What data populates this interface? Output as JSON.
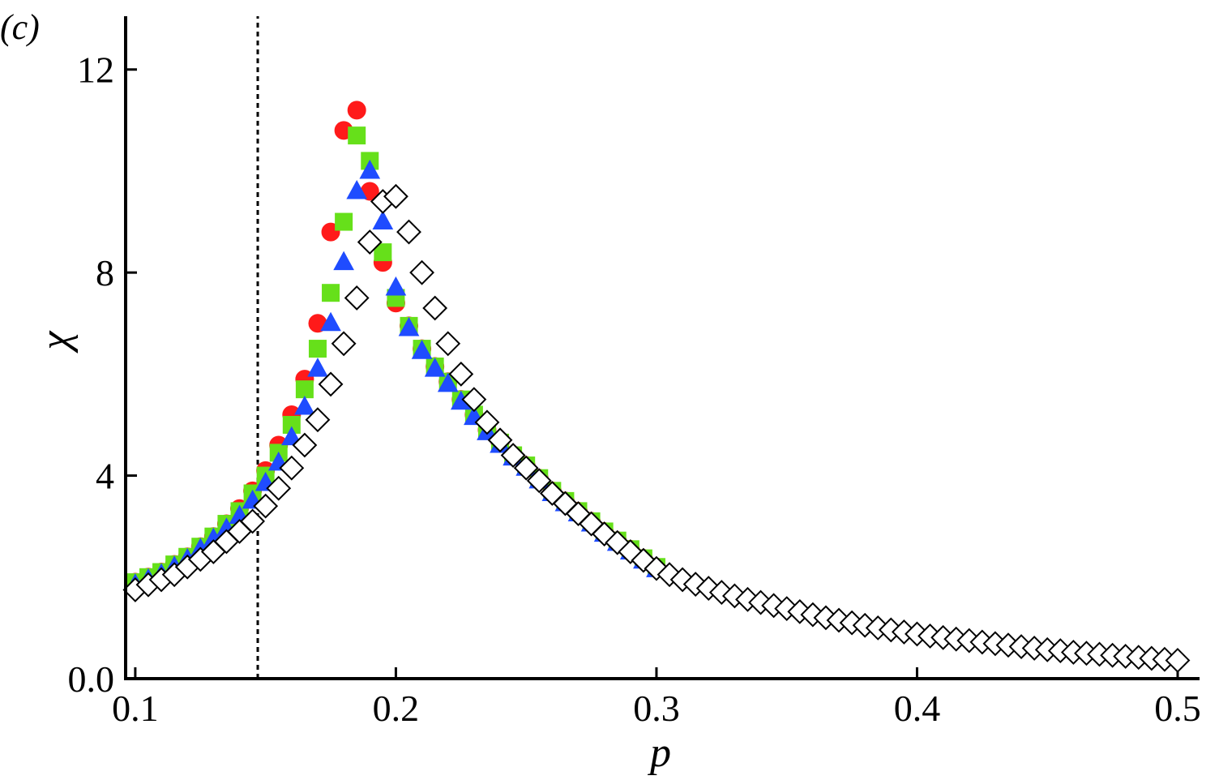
{
  "chart_data": {
    "type": "scatter",
    "panel_label": "(c)",
    "x_label": "p",
    "y_label": "χ",
    "xlim": [
      0.0963,
      0.5084
    ],
    "ylim": [
      0,
      13.05
    ],
    "xticks": [
      0.1,
      0.2,
      0.3,
      0.4,
      0.5
    ],
    "yticks": [
      {
        "value": 0,
        "label": "0.0"
      },
      4,
      8,
      12
    ],
    "vline": 0.147,
    "x": [
      0.1,
      0.105,
      0.11,
      0.115,
      0.12,
      0.125,
      0.13,
      0.135,
      0.14,
      0.145,
      0.15,
      0.155,
      0.16,
      0.165,
      0.17,
      0.175,
      0.18,
      0.185,
      0.19,
      0.195,
      0.2,
      0.205,
      0.21,
      0.215,
      0.22,
      0.225,
      0.23,
      0.235,
      0.24,
      0.245,
      0.25,
      0.255,
      0.26,
      0.265,
      0.27,
      0.275,
      0.28,
      0.285,
      0.29,
      0.295,
      0.3,
      0.305,
      0.31,
      0.315,
      0.32,
      0.325,
      0.33,
      0.335,
      0.34,
      0.345,
      0.35,
      0.355,
      0.36,
      0.365,
      0.37,
      0.375,
      0.38,
      0.385,
      0.39,
      0.395,
      0.4,
      0.405,
      0.41,
      0.415,
      0.42,
      0.425,
      0.43,
      0.435,
      0.44,
      0.445,
      0.45,
      0.455,
      0.46,
      0.465,
      0.47,
      0.475,
      0.48,
      0.485,
      0.49,
      0.495,
      0.5
    ],
    "series": [
      {
        "marker": "circle",
        "color": "#ff1a1a",
        "stroke": "#ff1a1a",
        "values": [
          1.9,
          2.0,
          2.1,
          2.25,
          2.4,
          2.6,
          2.8,
          3.05,
          3.35,
          3.7,
          4.1,
          4.6,
          5.2,
          5.9,
          7.0,
          8.8,
          10.8,
          11.2,
          9.6,
          8.2,
          7.4,
          6.95,
          6.5,
          6.15,
          5.85,
          5.5,
          5.2,
          4.9,
          4.65,
          4.4,
          4.2,
          3.95,
          3.7,
          3.5,
          3.3,
          3.1,
          2.9,
          2.72,
          2.55,
          2.37,
          2.2,
          null,
          null,
          null,
          null,
          null,
          null,
          null,
          null,
          null,
          null,
          null,
          null,
          null,
          null,
          null,
          null,
          null,
          null,
          null,
          null,
          null,
          null,
          null,
          null,
          null,
          null,
          null,
          null,
          null,
          null,
          null,
          null,
          null,
          null,
          null,
          null,
          null,
          null,
          null,
          null
        ]
      },
      {
        "marker": "square",
        "color": "#66e01a",
        "stroke": "#66e01a",
        "values": [
          1.9,
          2.0,
          2.1,
          2.25,
          2.4,
          2.6,
          2.8,
          3.05,
          3.3,
          3.65,
          4.0,
          4.45,
          5.0,
          5.7,
          6.5,
          7.6,
          9.0,
          10.7,
          10.2,
          8.4,
          7.5,
          6.95,
          6.5,
          6.15,
          5.85,
          5.5,
          5.2,
          4.9,
          4.65,
          4.4,
          4.2,
          3.95,
          3.7,
          3.5,
          3.3,
          3.1,
          2.9,
          2.72,
          2.55,
          2.37,
          2.2,
          null,
          null,
          null,
          null,
          null,
          null,
          null,
          null,
          null,
          null,
          null,
          null,
          null,
          null,
          null,
          null,
          null,
          null,
          null,
          null,
          null,
          null,
          null,
          null,
          null,
          null,
          null,
          null,
          null,
          null,
          null,
          null,
          null,
          null,
          null,
          null,
          null,
          null,
          null,
          null
        ]
      },
      {
        "marker": "triangle",
        "color": "#1f4cff",
        "stroke": "#1f4cff",
        "values": [
          1.85,
          1.95,
          2.05,
          2.2,
          2.35,
          2.55,
          2.75,
          2.95,
          3.2,
          3.5,
          3.85,
          4.25,
          4.75,
          5.35,
          6.1,
          7.0,
          8.2,
          9.6,
          10.0,
          9.0,
          7.7,
          6.9,
          6.45,
          6.1,
          5.8,
          5.45,
          5.15,
          4.85,
          4.6,
          4.35,
          4.15,
          3.9,
          3.65,
          3.45,
          3.25,
          3.05,
          2.85,
          2.67,
          2.5,
          2.32,
          2.15,
          null,
          null,
          null,
          null,
          null,
          null,
          null,
          null,
          null,
          null,
          null,
          null,
          null,
          null,
          null,
          null,
          null,
          null,
          null,
          null,
          null,
          null,
          null,
          null,
          null,
          null,
          null,
          null,
          null,
          null,
          null,
          null,
          null,
          null,
          null,
          null,
          null,
          null,
          null,
          null
        ]
      },
      {
        "marker": "diamond",
        "color": "#ffffff",
        "stroke": "#000000",
        "values": [
          1.75,
          1.85,
          1.95,
          2.05,
          2.2,
          2.35,
          2.5,
          2.7,
          2.9,
          3.1,
          3.4,
          3.75,
          4.15,
          4.6,
          5.1,
          5.8,
          6.6,
          7.5,
          8.6,
          9.4,
          9.5,
          8.8,
          8.0,
          7.3,
          6.6,
          6.0,
          5.5,
          5.05,
          4.7,
          4.4,
          4.15,
          3.9,
          3.65,
          3.45,
          3.25,
          3.05,
          2.85,
          2.68,
          2.5,
          2.33,
          2.17,
          2.05,
          1.95,
          1.86,
          1.78,
          1.7,
          1.63,
          1.56,
          1.5,
          1.44,
          1.38,
          1.32,
          1.26,
          1.2,
          1.15,
          1.1,
          1.05,
          1.0,
          0.96,
          0.92,
          0.88,
          0.84,
          0.81,
          0.78,
          0.75,
          0.72,
          0.69,
          0.66,
          0.63,
          0.6,
          0.57,
          0.55,
          0.52,
          0.5,
          0.48,
          0.46,
          0.44,
          0.42,
          0.4,
          0.38,
          0.36
        ]
      }
    ]
  }
}
